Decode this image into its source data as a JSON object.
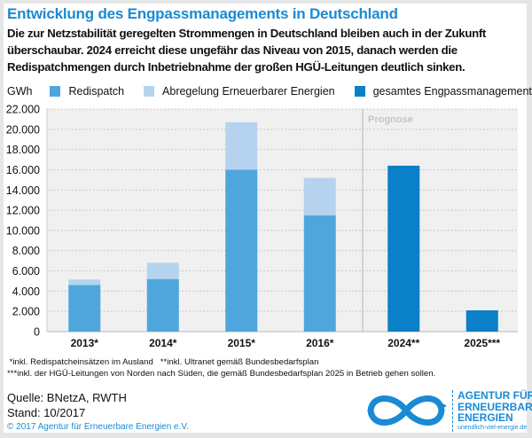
{
  "header": {
    "title": "Entwicklung des Engpassmanagements in Deutschland",
    "subtitle": "Die zur Netzstabilität geregelten Strommengen in Deutschland bleiben auch in der Zukunft überschaubar. 2024 erreicht diese ungefähr das Niveau von 2015, danach werden die Redispatchmengen durch Inbetriebnahme der großen HGÜ-Leitungen deutlich sinken."
  },
  "legend": {
    "unit": "GWh",
    "items": [
      {
        "label": "Redispatch",
        "color": "#4fa6dc"
      },
      {
        "label": "Abregelung Erneuerbarer Energien",
        "color": "#b5d3ef"
      },
      {
        "label": "gesamtes Engpassmanagement",
        "color": "#0a80c8"
      }
    ]
  },
  "chart_data": {
    "type": "bar",
    "stacked": true,
    "title": "Entwicklung des Engpassmanagements in Deutschland",
    "xlabel": "",
    "ylabel": "GWh",
    "ylim": [
      0,
      22000
    ],
    "yticks": [
      0,
      2000,
      4000,
      6000,
      8000,
      10000,
      12000,
      14000,
      16000,
      18000,
      20000,
      22000
    ],
    "ytick_labels": [
      "0",
      "2.000",
      "4.000",
      "6.000",
      "8.000",
      "10.000",
      "12.000",
      "14.000",
      "16.000",
      "18.000",
      "20.000",
      "22.000"
    ],
    "grid": true,
    "legend_position": "top",
    "categories": [
      "2013*",
      "2014*",
      "2015*",
      "2016*",
      "2024**",
      "2025***"
    ],
    "series": [
      {
        "name": "Redispatch",
        "color": "#4fa6dc",
        "values": [
          4600,
          5200,
          16000,
          11500,
          null,
          null
        ]
      },
      {
        "name": "Abregelung Erneuerbarer Energien",
        "color": "#b5d3ef",
        "values": [
          550,
          1600,
          4700,
          3700,
          null,
          null
        ]
      },
      {
        "name": "gesamtes Engpassmanagement",
        "color": "#0a80c8",
        "values": [
          null,
          null,
          null,
          null,
          16400,
          2100
        ]
      }
    ],
    "annotations": [
      {
        "text": "Prognose",
        "region": "forecast section starting after 2016*"
      }
    ]
  },
  "notes": {
    "line1": " *inkl. Redispatcheinsätzen im Ausland   **inkl. Ultranet gemäß Bundesbedarfsplan",
    "line2": "***inkl. der HGÜ-Leitungen von Norden nach Süden, die gemäß Bundesbedarfsplan 2025 in Betrieb gehen sollen."
  },
  "footer": {
    "source": "Quelle: BNetzA, RWTH",
    "date": "Stand: 10/2017",
    "copyright": "© 2017 Agentur für Erneuerbare Energien e.V.",
    "logo_line1": "AGENTUR FÜR",
    "logo_line2": "ERNEUERBARE",
    "logo_line3": "ENERGIEN",
    "logo_url": "unendlich-viel-energie.de"
  }
}
